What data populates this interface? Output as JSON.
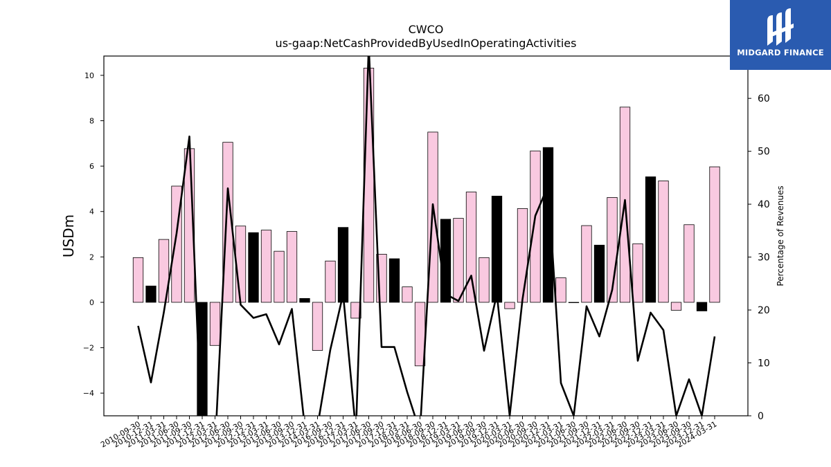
{
  "chart_data": {
    "type": "bar",
    "title": "CWCO",
    "subtitle": "us-gaap:NetCashProvidedByUsedInOperatingActivities",
    "ylabel": "USDm",
    "y2label": "Percentage of Revenues",
    "ylim": [
      -5,
      10.85
    ],
    "y2lim": [
      0,
      68
    ],
    "yticks": [
      -4,
      -2,
      0,
      2,
      4,
      6,
      8,
      10
    ],
    "y2ticks": [
      0,
      10,
      20,
      30,
      40,
      50,
      60
    ],
    "xticks": [
      "2010-09-30",
      "2010-12-31",
      "2011-03-31",
      "2011-06-30",
      "2011-09-30",
      "2011-12-31",
      "2012-03-31",
      "2012-06-30",
      "2012-09-30",
      "2012-12-31",
      "2013-03-31",
      "2013-06-30",
      "2013-09-30",
      "2013-12-31",
      "2014-03-31",
      "2016-09-30",
      "2016-12-31",
      "2017-03-31",
      "2017-06-30",
      "2017-09-30",
      "2017-12-31",
      "2018-03-31",
      "2018-06-30",
      "2018-09-30",
      "2018-12-31",
      "2019-03-31",
      "2019-06-30",
      "2019-09-30",
      "2019-12-31",
      "2020-03-31",
      "2020-06-30",
      "2020-09-30",
      "2020-12-31",
      "2021-03-31",
      "2021-06-30",
      "2021-09-30",
      "2021-12-31",
      "2022-03-31",
      "2022-06-30",
      "2022-09-30",
      "2022-12-31",
      "2023-03-31",
      "2023-06-30",
      "2023-09-30",
      "2023-12-31",
      "2024-03-31"
    ],
    "bars": [
      {
        "value": 1.97,
        "color": "#f9c9e0"
      },
      {
        "value": 0.72,
        "color": "#000000"
      },
      {
        "value": 2.77,
        "color": "#f9c9e0"
      },
      {
        "value": 5.12,
        "color": "#f9c9e0"
      },
      {
        "value": 6.77,
        "color": "#f9c9e0"
      },
      {
        "value": -5.2,
        "color": "#000000"
      },
      {
        "value": -1.9,
        "color": "#f9c9e0"
      },
      {
        "value": 7.05,
        "color": "#f9c9e0"
      },
      {
        "value": 3.36,
        "color": "#f9c9e0"
      },
      {
        "value": 3.07,
        "color": "#000000"
      },
      {
        "value": 3.18,
        "color": "#f9c9e0"
      },
      {
        "value": 2.25,
        "color": "#f9c9e0"
      },
      {
        "value": 3.12,
        "color": "#f9c9e0"
      },
      {
        "value": 0.17,
        "color": "#000000"
      },
      {
        "value": -2.12,
        "color": "#f9c9e0"
      },
      {
        "value": 1.82,
        "color": "#f9c9e0"
      },
      {
        "value": 3.3,
        "color": "#000000"
      },
      {
        "value": -0.7,
        "color": "#f9c9e0"
      },
      {
        "value": 10.32,
        "color": "#f9c9e0"
      },
      {
        "value": 2.12,
        "color": "#f9c9e0"
      },
      {
        "value": 1.92,
        "color": "#000000"
      },
      {
        "value": 0.68,
        "color": "#f9c9e0"
      },
      {
        "value": -2.8,
        "color": "#f9c9e0"
      },
      {
        "value": 7.5,
        "color": "#f9c9e0"
      },
      {
        "value": 3.66,
        "color": "#000000"
      },
      {
        "value": 3.7,
        "color": "#f9c9e0"
      },
      {
        "value": 4.86,
        "color": "#f9c9e0"
      },
      {
        "value": 1.97,
        "color": "#f9c9e0"
      },
      {
        "value": 4.68,
        "color": "#000000"
      },
      {
        "value": -0.28,
        "color": "#f9c9e0"
      },
      {
        "value": 4.13,
        "color": "#f9c9e0"
      },
      {
        "value": 6.67,
        "color": "#f9c9e0"
      },
      {
        "value": 6.82,
        "color": "#000000"
      },
      {
        "value": 1.08,
        "color": "#f9c9e0"
      },
      {
        "value": 0.0,
        "color": "#f9c9e0"
      },
      {
        "value": 3.38,
        "color": "#f9c9e0"
      },
      {
        "value": 2.52,
        "color": "#000000"
      },
      {
        "value": 4.62,
        "color": "#f9c9e0"
      },
      {
        "value": 8.6,
        "color": "#f9c9e0"
      },
      {
        "value": 2.58,
        "color": "#f9c9e0"
      },
      {
        "value": 5.53,
        "color": "#000000"
      },
      {
        "value": 5.35,
        "color": "#f9c9e0"
      },
      {
        "value": -0.35,
        "color": "#f9c9e0"
      },
      {
        "value": 3.42,
        "color": "#f9c9e0"
      },
      {
        "value": -0.38,
        "color": "#000000"
      },
      {
        "value": 5.97,
        "color": "#f9c9e0"
      }
    ],
    "line_values": [
      17,
      6.3,
      19.5,
      34.5,
      52.8,
      -6,
      -6,
      43,
      21,
      18.5,
      19.2,
      13.5,
      20.2,
      -2,
      -2,
      12.5,
      23,
      -3,
      70,
      13,
      13,
      4.5,
      -3,
      40,
      23,
      21.7,
      26.5,
      12.3,
      23,
      0,
      22,
      37.8,
      43.5,
      6.2,
      0,
      20.7,
      15,
      23.8,
      40.8,
      10.4,
      19.5,
      16.2,
      0,
      6.9,
      0,
      15
    ]
  },
  "logo": {
    "text": "MIDGARD FINANCE",
    "color": "#2a5bb0"
  }
}
